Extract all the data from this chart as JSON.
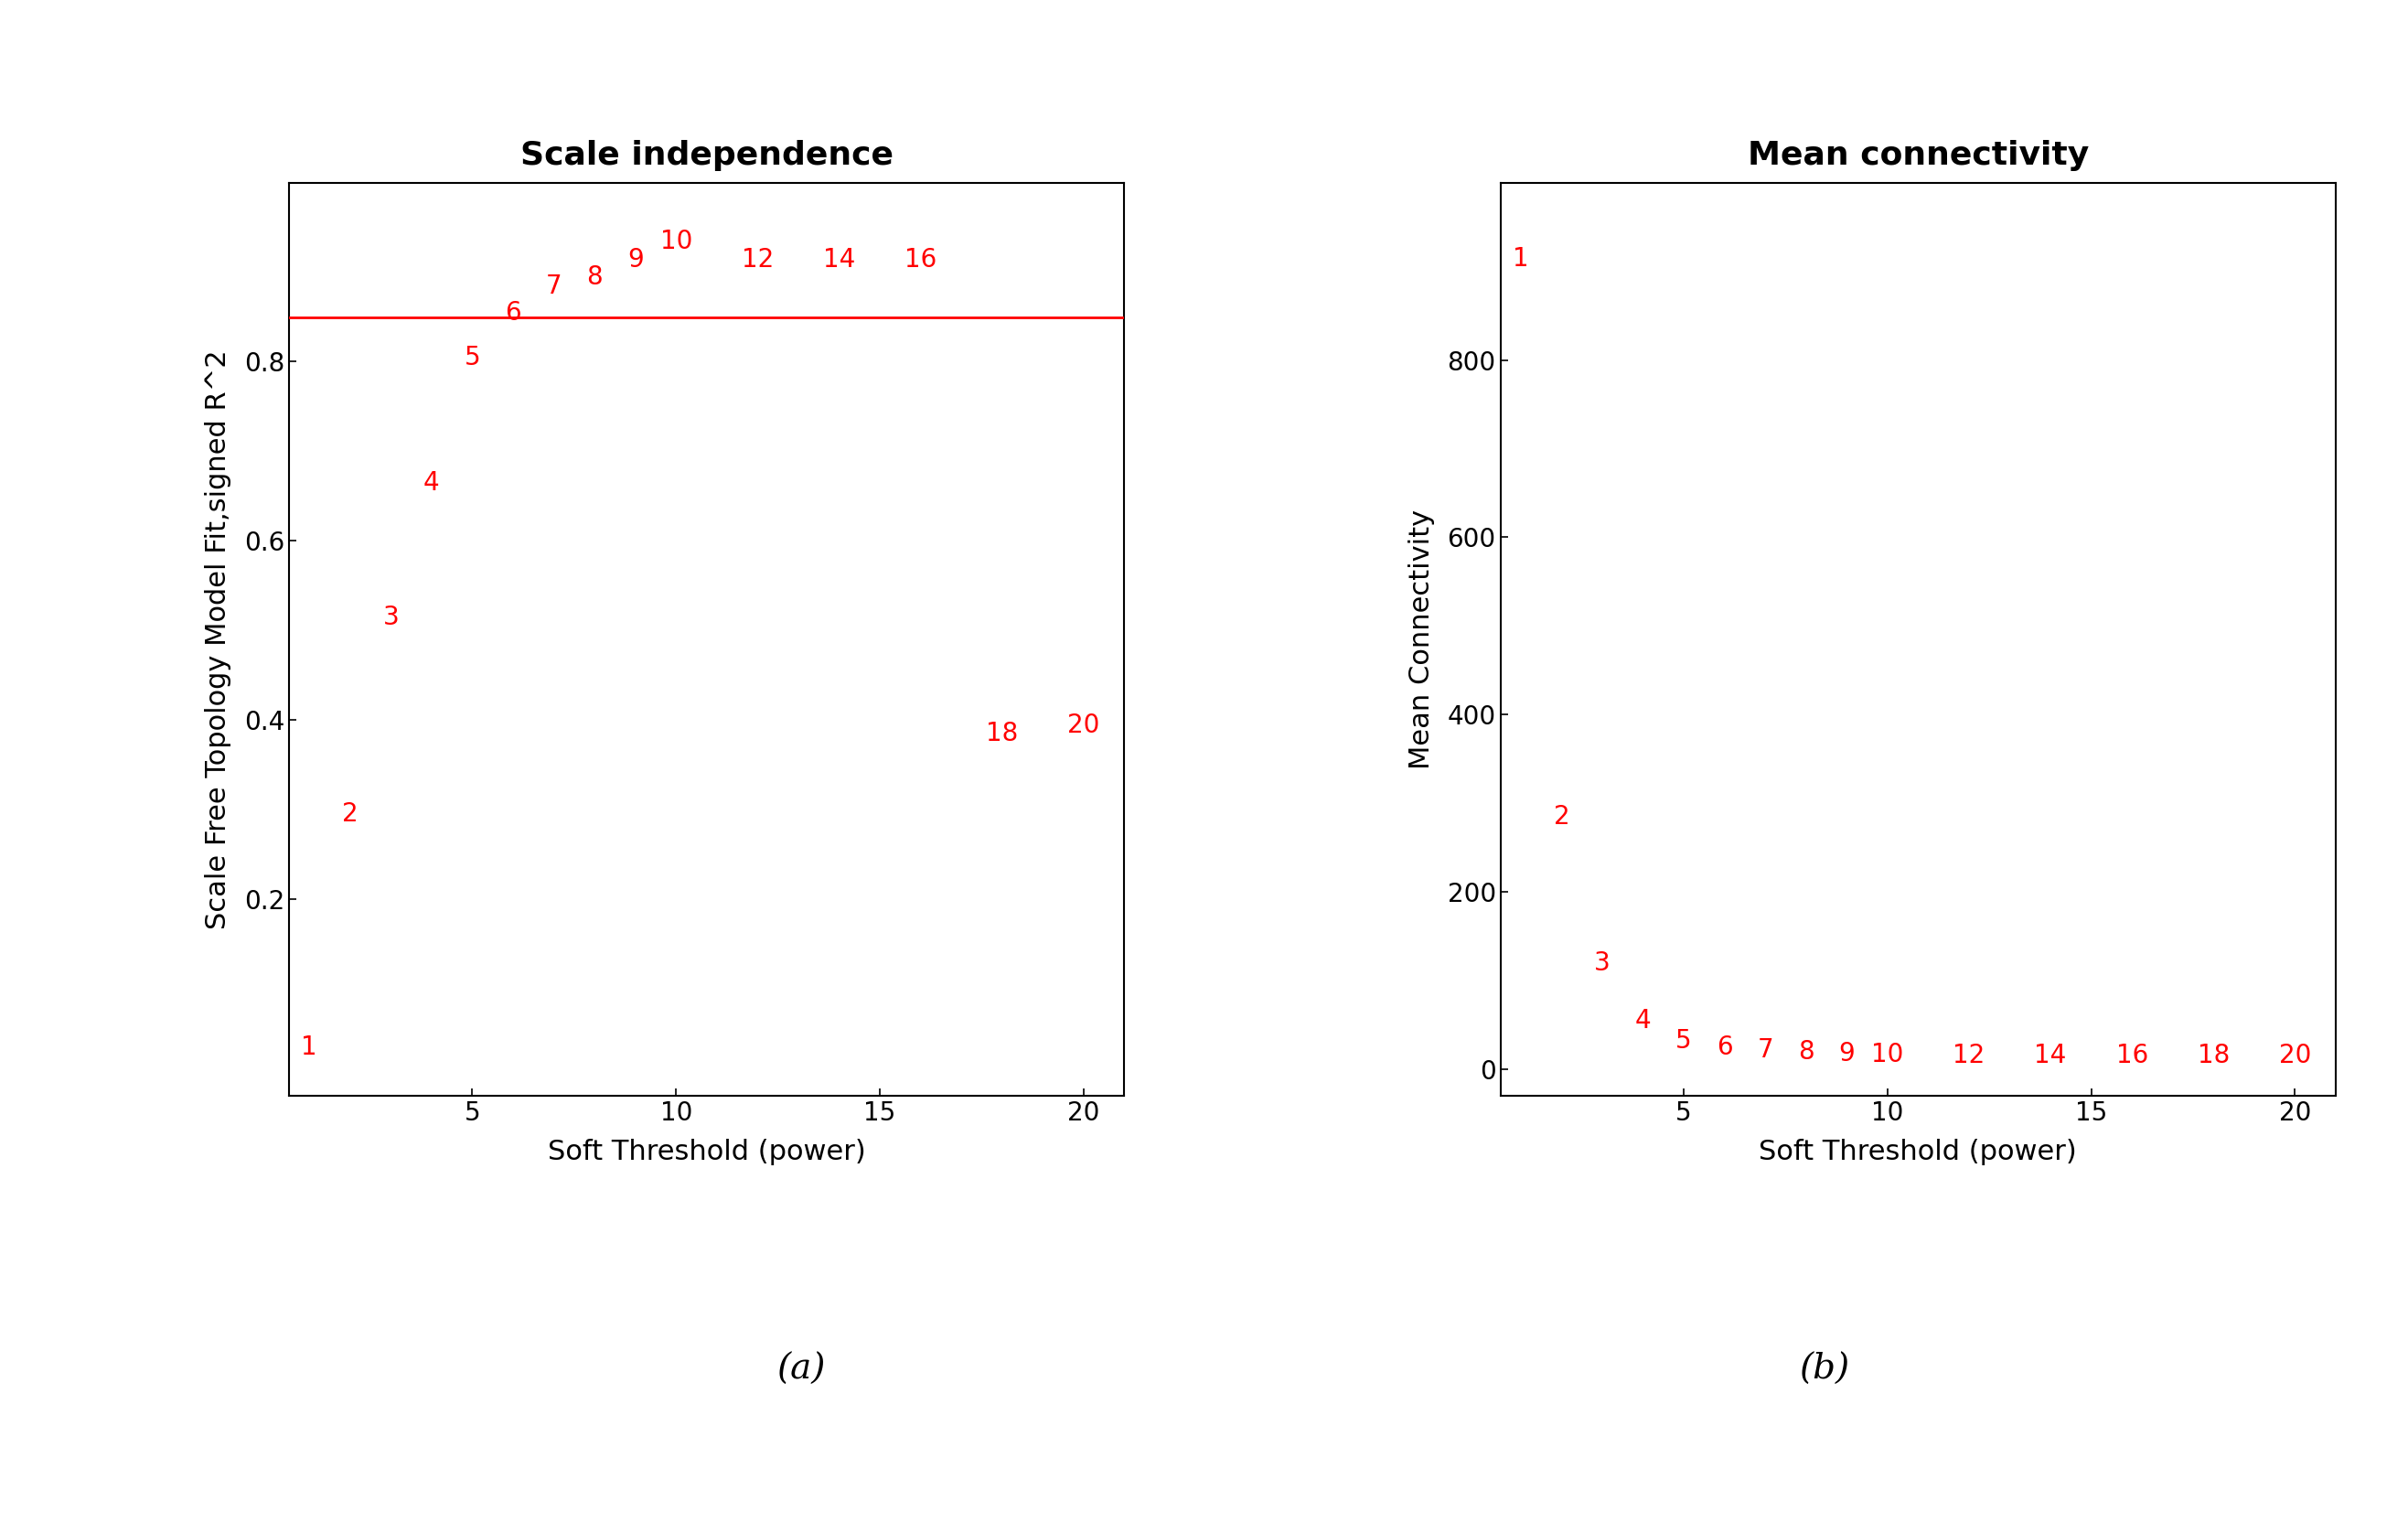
{
  "plot_a": {
    "title": "Scale independence",
    "xlabel": "Soft Threshold (power)",
    "ylabel": "Scale Free Topology Model Fit,signed R^2",
    "powers": [
      1,
      2,
      3,
      4,
      5,
      6,
      7,
      8,
      9,
      10,
      12,
      14,
      16,
      18,
      20
    ],
    "sft_values": [
      0.02,
      0.28,
      0.5,
      0.65,
      0.79,
      0.84,
      0.87,
      0.88,
      0.9,
      0.92,
      0.9,
      0.9,
      0.9,
      0.37,
      0.38
    ],
    "hline": 0.85,
    "xlim": [
      0.5,
      21
    ],
    "ylim": [
      -0.02,
      1.0
    ],
    "xticks": [
      5,
      10,
      15,
      20
    ],
    "yticks": [
      0.2,
      0.4,
      0.6,
      0.8
    ]
  },
  "plot_b": {
    "title": "Mean connectivity",
    "xlabel": "Soft Threshold (power)",
    "ylabel": "Mean Connectivity",
    "powers": [
      1,
      2,
      3,
      4,
      5,
      6,
      7,
      8,
      9,
      10,
      12,
      14,
      16,
      18,
      20
    ],
    "mc_values": [
      900,
      270,
      105,
      40,
      18,
      10,
      7,
      5,
      3,
      2,
      1,
      1,
      1,
      1,
      1
    ],
    "xlim": [
      0.5,
      21
    ],
    "ylim": [
      -30,
      1000
    ],
    "xticks": [
      5,
      10,
      15,
      20
    ],
    "yticks": [
      0,
      200,
      400,
      600,
      800
    ]
  },
  "text_color": "#FF0000",
  "line_color": "#FF0000",
  "axis_color": "#000000",
  "label_a": "(a)",
  "label_b": "(b)",
  "title_fontsize": 26,
  "axis_label_fontsize": 22,
  "tick_label_fontsize": 20,
  "point_label_fontsize": 20,
  "sublabel_fontsize": 28
}
